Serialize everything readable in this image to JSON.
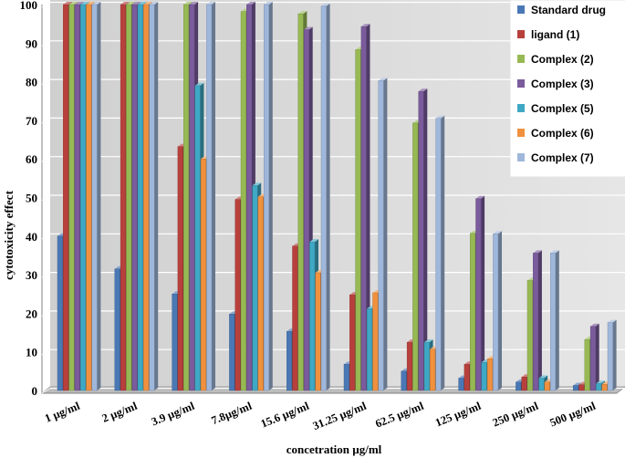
{
  "chart_data": {
    "type": "bar",
    "title": "",
    "xlabel": "concetration  µg/ml",
    "ylabel": "cytotoxicity  effect",
    "ylim": [
      0,
      100
    ],
    "yticks": [
      0,
      10,
      20,
      30,
      40,
      50,
      60,
      70,
      80,
      90,
      100
    ],
    "legend_position": "top-right",
    "categories": [
      "1 µg/ml",
      "2 µg/ml",
      "3.9 µg/ml",
      "7.8µg/ml",
      "15.6 µg/ml",
      "31.25 µg/ml",
      "62.5 µg/ml",
      "125 µg/ml",
      "250 µg/ml",
      "500 µg/ml"
    ],
    "series": [
      {
        "name": "Standard drug",
        "color": "#4a78b5",
        "values": [
          40,
          31.5,
          25,
          19.8,
          15.3,
          6.8,
          5,
          3.2,
          2.2,
          1.3
        ]
      },
      {
        "name": "ligand (1)",
        "color": "#b8403c",
        "values": [
          100,
          100,
          63.2,
          49.5,
          37.4,
          24.8,
          12.5,
          6.8,
          3.5,
          1.5
        ]
      },
      {
        "name": "Complex (2)",
        "color": "#97b954",
        "values": [
          100,
          100,
          100,
          98.2,
          97.6,
          88.3,
          69.3,
          40.7,
          28.5,
          13.2
        ]
      },
      {
        "name": "Complex (3)",
        "color": "#7a5b9c",
        "values": [
          100,
          100,
          100,
          100,
          93.5,
          94.3,
          77.5,
          49.7,
          35.6,
          16.6
        ]
      },
      {
        "name": "Complex (5)",
        "color": "#3fa8c4",
        "values": [
          100,
          100,
          79,
          53.1,
          38.5,
          21.2,
          12.5,
          7.3,
          3.2,
          1.8
        ]
      },
      {
        "name": "Complex (6)",
        "color": "#f0913f",
        "values": [
          100,
          100,
          60,
          50.2,
          30.5,
          25.3,
          10.7,
          8.2,
          2.2,
          1.6
        ]
      },
      {
        "name": "Complex (7)",
        "color": "#9fb7db",
        "values": [
          100,
          100,
          100,
          100,
          99.6,
          80.3,
          70.5,
          40.6,
          35.6,
          17.6
        ]
      }
    ]
  },
  "colors": {
    "wall": "#dcdcdc",
    "floor": "#c0c0c0",
    "grid": "#ffffff",
    "axis": "#808080"
  }
}
